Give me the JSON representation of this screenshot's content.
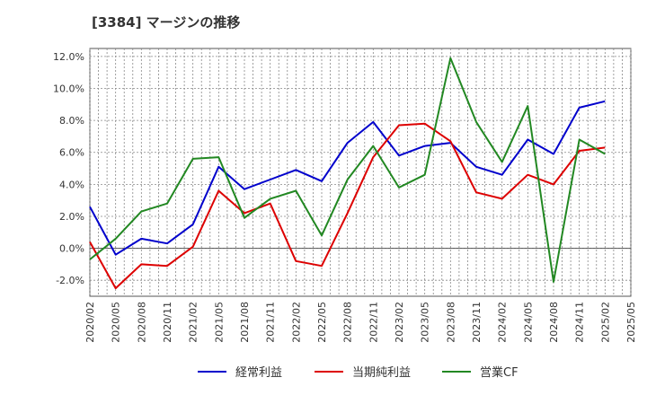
{
  "chart_data": {
    "type": "line",
    "title": "[3384]  マージンの推移",
    "x": [
      "2020/02",
      "2020/05",
      "2020/08",
      "2020/11",
      "2021/02",
      "2021/05",
      "2021/08",
      "2021/11",
      "2022/02",
      "2022/05",
      "2022/08",
      "2022/11",
      "2023/02",
      "2023/05",
      "2023/08",
      "2023/11",
      "2024/02",
      "2024/05",
      "2024/08",
      "2024/11",
      "2025/02"
    ],
    "x_tick_labels": [
      "2020/02",
      "2020/05",
      "2020/08",
      "2020/11",
      "2021/02",
      "2021/05",
      "2021/08",
      "2021/11",
      "2022/02",
      "2022/05",
      "2022/08",
      "2022/11",
      "2023/02",
      "2023/05",
      "2023/08",
      "2023/11",
      "2024/02",
      "2024/05",
      "2024/08",
      "2024/11",
      "2025/02",
      "2025/05"
    ],
    "y_tick_labels": [
      "12.0%",
      "10.0%",
      "8.0%",
      "6.0%",
      "4.0%",
      "2.0%",
      "0.0%",
      "-2.0%"
    ],
    "ylim": [
      -3.0,
      12.5
    ],
    "grid": true,
    "legend_position": "bottom",
    "colors": {
      "keijo": "#0000cc",
      "junri": "#dd0000",
      "cf": "#228822"
    },
    "series": [
      {
        "name": "経常利益",
        "color": "#0000cc",
        "values": [
          2.6,
          -0.4,
          0.6,
          0.3,
          1.5,
          5.1,
          3.7,
          4.3,
          4.9,
          4.2,
          6.6,
          7.9,
          5.8,
          6.4,
          6.6,
          5.1,
          4.6,
          6.8,
          5.9,
          8.8,
          9.2
        ]
      },
      {
        "name": "当期純利益",
        "color": "#dd0000",
        "values": [
          0.4,
          -2.5,
          -1.0,
          -1.1,
          0.1,
          3.6,
          2.2,
          2.8,
          -0.8,
          -1.1,
          2.2,
          5.7,
          7.7,
          7.8,
          6.7,
          3.5,
          3.1,
          4.6,
          4.0,
          6.1,
          6.3
        ]
      },
      {
        "name": "営業CF",
        "color": "#228822",
        "values": [
          -0.7,
          0.6,
          2.3,
          2.8,
          5.6,
          5.7,
          1.9,
          3.1,
          3.6,
          0.8,
          4.3,
          6.4,
          3.8,
          4.6,
          11.9,
          7.9,
          5.4,
          8.9,
          -2.1,
          6.8,
          5.9
        ]
      }
    ]
  }
}
